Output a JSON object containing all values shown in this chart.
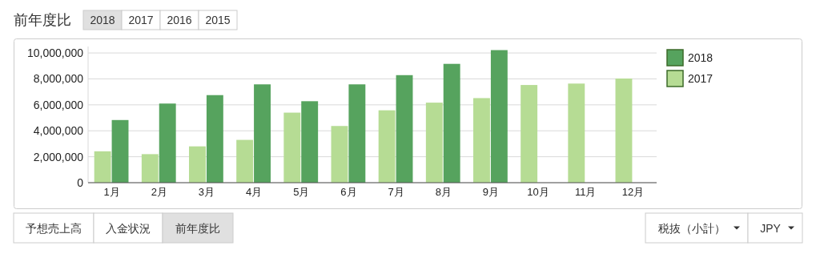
{
  "chart_data": {
    "type": "bar",
    "title": "前年度比",
    "categories": [
      "1月",
      "2月",
      "3月",
      "4月",
      "5月",
      "6月",
      "7月",
      "8月",
      "9月",
      "10月",
      "11月",
      "12月"
    ],
    "series": [
      {
        "name": "2017",
        "color": "#b6dc94",
        "values": [
          2420000,
          2200000,
          2800000,
          3300000,
          5400000,
          4370000,
          5580000,
          6170000,
          6520000,
          7530000,
          7640000,
          8030000
        ]
      },
      {
        "name": "2018",
        "color": "#56a35e",
        "values": [
          4830000,
          6100000,
          6750000,
          7580000,
          6280000,
          7580000,
          8290000,
          9160000,
          10220000,
          null,
          null,
          null
        ]
      }
    ],
    "ylim": [
      0,
      10500000
    ],
    "yticks": [
      0,
      {
        "value": 2000000,
        "label": "2,000,000"
      },
      {
        "value": 4000000,
        "label": "4,000,000"
      },
      {
        "value": 6000000,
        "label": "6,000,000"
      },
      {
        "value": 8000000,
        "label": "8,000,000"
      },
      {
        "value": 10000000,
        "label": "10,000,000"
      }
    ],
    "grid": "y",
    "legend": "top right",
    "annotations": [
      "2018",
      "2017",
      "2016",
      "2015",
      "予想売上高",
      "入金状況",
      "前年度比",
      "税抜（小計）",
      "JPY"
    ]
  }
}
